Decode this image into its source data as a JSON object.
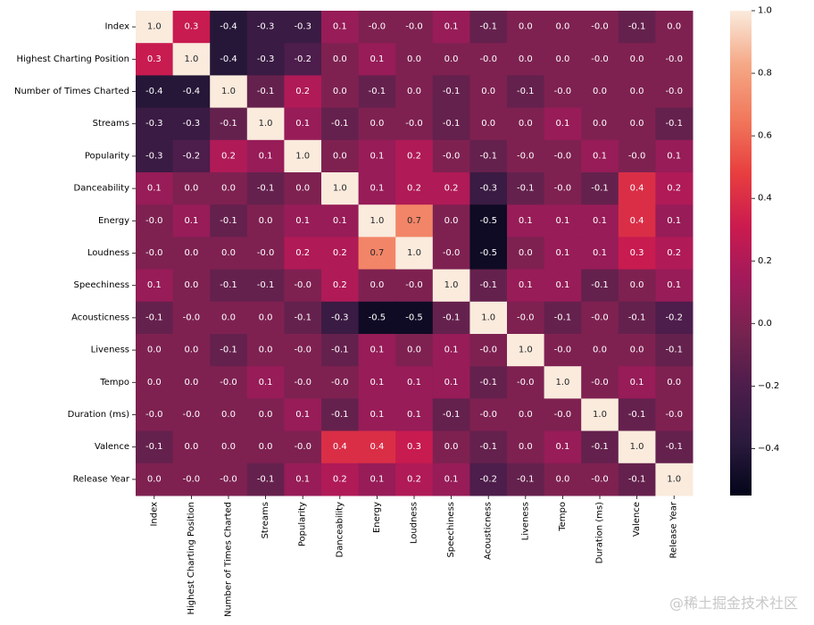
{
  "chart_data": {
    "type": "heatmap",
    "labels": [
      "Index",
      "Highest Charting Position",
      "Number of Times Charted",
      "Streams",
      "Popularity",
      "Danceability",
      "Energy",
      "Loudness",
      "Speechiness",
      "Acousticness",
      "Liveness",
      "Tempo",
      "Duration (ms)",
      "Valence",
      "Release Year"
    ],
    "values": [
      [
        1.0,
        0.3,
        -0.4,
        -0.3,
        -0.3,
        0.1,
        -0.0,
        -0.0,
        0.1,
        -0.1,
        0.0,
        0.0,
        -0.0,
        -0.1,
        0.0
      ],
      [
        0.3,
        1.0,
        -0.4,
        -0.3,
        -0.2,
        0.0,
        0.1,
        0.0,
        0.0,
        -0.0,
        0.0,
        0.0,
        -0.0,
        0.0,
        -0.0
      ],
      [
        -0.4,
        -0.4,
        1.0,
        -0.1,
        0.2,
        0.0,
        -0.1,
        0.0,
        -0.1,
        0.0,
        -0.1,
        -0.0,
        0.0,
        0.0,
        -0.0
      ],
      [
        -0.3,
        -0.3,
        -0.1,
        1.0,
        0.1,
        -0.1,
        0.0,
        -0.0,
        -0.1,
        0.0,
        0.0,
        0.1,
        0.0,
        0.0,
        -0.1
      ],
      [
        -0.3,
        -0.2,
        0.2,
        0.1,
        1.0,
        0.0,
        0.1,
        0.2,
        -0.0,
        -0.1,
        -0.0,
        -0.0,
        0.1,
        -0.0,
        0.1
      ],
      [
        0.1,
        0.0,
        0.0,
        -0.1,
        0.0,
        1.0,
        0.1,
        0.2,
        0.2,
        -0.3,
        -0.1,
        -0.0,
        -0.1,
        0.4,
        0.2
      ],
      [
        -0.0,
        0.1,
        -0.1,
        0.0,
        0.1,
        0.1,
        1.0,
        0.7,
        0.0,
        -0.5,
        0.1,
        0.1,
        0.1,
        0.4,
        0.1
      ],
      [
        -0.0,
        0.0,
        0.0,
        -0.0,
        0.2,
        0.2,
        0.7,
        1.0,
        -0.0,
        -0.5,
        0.0,
        0.1,
        0.1,
        0.3,
        0.2
      ],
      [
        0.1,
        0.0,
        -0.1,
        -0.1,
        -0.0,
        0.2,
        0.0,
        -0.0,
        1.0,
        -0.1,
        0.1,
        0.1,
        -0.1,
        0.0,
        0.1
      ],
      [
        -0.1,
        -0.0,
        0.0,
        0.0,
        -0.1,
        -0.3,
        -0.5,
        -0.5,
        -0.1,
        1.0,
        -0.0,
        -0.1,
        -0.0,
        -0.1,
        -0.2
      ],
      [
        0.0,
        0.0,
        -0.1,
        0.0,
        -0.0,
        -0.1,
        0.1,
        0.0,
        0.1,
        -0.0,
        1.0,
        -0.0,
        0.0,
        0.0,
        -0.1
      ],
      [
        0.0,
        0.0,
        -0.0,
        0.1,
        -0.0,
        -0.0,
        0.1,
        0.1,
        0.1,
        -0.1,
        -0.0,
        1.0,
        -0.0,
        0.1,
        0.0
      ],
      [
        -0.0,
        -0.0,
        0.0,
        0.0,
        0.1,
        -0.1,
        0.1,
        0.1,
        -0.1,
        -0.0,
        0.0,
        -0.0,
        1.0,
        -0.1,
        -0.0
      ],
      [
        -0.1,
        0.0,
        0.0,
        0.0,
        -0.0,
        0.4,
        0.4,
        0.3,
        0.0,
        -0.1,
        0.0,
        0.1,
        -0.1,
        1.0,
        -0.1
      ],
      [
        0.0,
        -0.0,
        -0.0,
        -0.1,
        0.1,
        0.2,
        0.1,
        0.2,
        0.1,
        -0.2,
        -0.1,
        0.0,
        -0.0,
        -0.1,
        1.0
      ]
    ],
    "display": [
      [
        "1.0",
        "0.3",
        "-0.4",
        "-0.3",
        "-0.3",
        "0.1",
        "-0.0",
        "-0.0",
        "0.1",
        "-0.1",
        "0.0",
        "0.0",
        "-0.0",
        "-0.1",
        "0.0"
      ],
      [
        "0.3",
        "1.0",
        "-0.4",
        "-0.3",
        "-0.2",
        "0.0",
        "0.1",
        "0.0",
        "0.0",
        "-0.0",
        "0.0",
        "0.0",
        "-0.0",
        "0.0",
        "-0.0"
      ],
      [
        "-0.4",
        "-0.4",
        "1.0",
        "-0.1",
        "0.2",
        "0.0",
        "-0.1",
        "0.0",
        "-0.1",
        "0.0",
        "-0.1",
        "-0.0",
        "0.0",
        "0.0",
        "-0.0"
      ],
      [
        "-0.3",
        "-0.3",
        "-0.1",
        "1.0",
        "0.1",
        "-0.1",
        "0.0",
        "-0.0",
        "-0.1",
        "0.0",
        "0.0",
        "0.1",
        "0.0",
        "0.0",
        "-0.1"
      ],
      [
        "-0.3",
        "-0.2",
        "0.2",
        "0.1",
        "1.0",
        "0.0",
        "0.1",
        "0.2",
        "-0.0",
        "-0.1",
        "-0.0",
        "-0.0",
        "0.1",
        "-0.0",
        "0.1"
      ],
      [
        "0.1",
        "0.0",
        "0.0",
        "-0.1",
        "0.0",
        "1.0",
        "0.1",
        "0.2",
        "0.2",
        "-0.3",
        "-0.1",
        "-0.0",
        "-0.1",
        "0.4",
        "0.2"
      ],
      [
        "-0.0",
        "0.1",
        "-0.1",
        "0.0",
        "0.1",
        "0.1",
        "1.0",
        "0.7",
        "0.0",
        "-0.5",
        "0.1",
        "0.1",
        "0.1",
        "0.4",
        "0.1"
      ],
      [
        "-0.0",
        "0.0",
        "0.0",
        "-0.0",
        "0.2",
        "0.2",
        "0.7",
        "1.0",
        "-0.0",
        "-0.5",
        "0.0",
        "0.1",
        "0.1",
        "0.3",
        "0.2"
      ],
      [
        "0.1",
        "0.0",
        "-0.1",
        "-0.1",
        "-0.0",
        "0.2",
        "0.0",
        "-0.0",
        "1.0",
        "-0.1",
        "0.1",
        "0.1",
        "-0.1",
        "0.0",
        "0.1"
      ],
      [
        "-0.1",
        "-0.0",
        "0.0",
        "0.0",
        "-0.1",
        "-0.3",
        "-0.5",
        "-0.5",
        "-0.1",
        "1.0",
        "-0.0",
        "-0.1",
        "-0.0",
        "-0.1",
        "-0.2"
      ],
      [
        "0.0",
        "0.0",
        "-0.1",
        "0.0",
        "-0.0",
        "-0.1",
        "0.1",
        "0.0",
        "0.1",
        "-0.0",
        "1.0",
        "-0.0",
        "0.0",
        "0.0",
        "-0.1"
      ],
      [
        "0.0",
        "0.0",
        "-0.0",
        "0.1",
        "-0.0",
        "-0.0",
        "0.1",
        "0.1",
        "0.1",
        "-0.1",
        "-0.0",
        "1.0",
        "-0.0",
        "0.1",
        "0.0"
      ],
      [
        "-0.0",
        "-0.0",
        "0.0",
        "0.0",
        "0.1",
        "-0.1",
        "0.1",
        "0.1",
        "-0.1",
        "-0.0",
        "0.0",
        "-0.0",
        "1.0",
        "-0.1",
        "-0.0"
      ],
      [
        "-0.1",
        "0.0",
        "0.0",
        "0.0",
        "-0.0",
        "0.4",
        "0.4",
        "0.3",
        "0.0",
        "-0.1",
        "0.0",
        "0.1",
        "-0.1",
        "1.0",
        "-0.1"
      ],
      [
        "0.0",
        "-0.0",
        "-0.0",
        "-0.1",
        "0.1",
        "0.2",
        "0.1",
        "0.2",
        "0.1",
        "-0.2",
        "-0.1",
        "0.0",
        "-0.0",
        "-0.1",
        "1.0"
      ]
    ],
    "colorbar": {
      "vmin": -0.55,
      "vmax": 1.0,
      "ticks": [
        -0.4,
        -0.2,
        0.0,
        0.2,
        0.4,
        0.6,
        0.8,
        1.0
      ],
      "tick_labels": [
        "−0.4",
        "−0.2",
        "0.0",
        "0.2",
        "0.4",
        "0.6",
        "0.8",
        "1.0"
      ],
      "colormap": "rocket",
      "stops": [
        "#03051a",
        "#2b1a3d",
        "#4c1d4b",
        "#75234f",
        "#a11a5b",
        "#cb1b4f",
        "#e83f3f",
        "#f1795c",
        "#f5a886",
        "#faebdd"
      ]
    },
    "title": "",
    "xlabel": "",
    "ylabel": ""
  },
  "watermark": "@稀土掘金技术社区"
}
